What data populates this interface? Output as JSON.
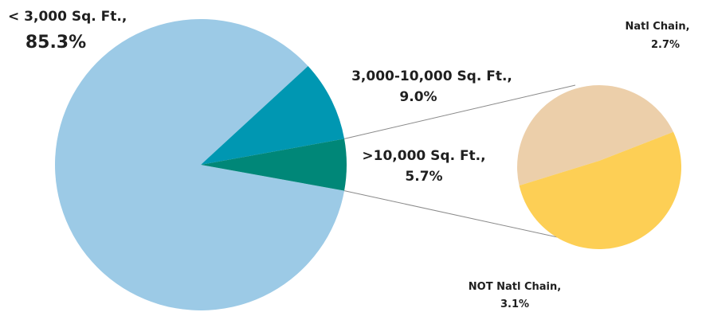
{
  "chart_data": {
    "type": "pie",
    "main_pie": {
      "slices": [
        {
          "name": "< 3,000 Sq. Ft.,",
          "value": 85.3,
          "label": "85.3%",
          "color": "#9ccae6"
        },
        {
          "name": "3,000-10,000 Sq. Ft.,",
          "value": 9.0,
          "label": "9.0%",
          "color": "#0097b2"
        },
        {
          "name": ">10,000 Sq. Ft.,",
          "value": 5.7,
          "label": "5.7%",
          "color": "#008778"
        }
      ]
    },
    "breakdown_pie": {
      "parent": ">10,000 Sq. Ft.,",
      "slices": [
        {
          "name": "Natl Chain,",
          "value": 2.7,
          "label": "2.7%",
          "color": "#eccfaa"
        },
        {
          "name": "NOT Natl Chain,",
          "value": 3.1,
          "label": "3.1%",
          "color": "#fdcf55"
        }
      ]
    },
    "connector_color": "#8a8a8a"
  }
}
